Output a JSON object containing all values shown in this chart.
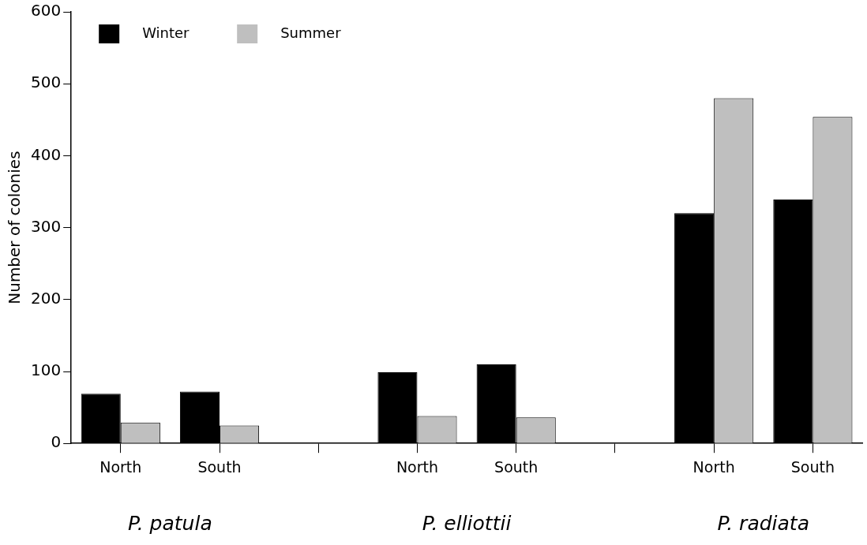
{
  "chart_data": {
    "type": "bar",
    "ylabel": "Number of colonies",
    "categories": [
      "North",
      "South",
      null,
      "North",
      "South",
      null,
      "North",
      "South"
    ],
    "series": [
      {
        "name": "Winter",
        "color": "#000000",
        "values": [
          69,
          72,
          null,
          99,
          110,
          null,
          320,
          339
        ]
      },
      {
        "name": "Summer",
        "color": "#bfbfbf",
        "values": [
          29,
          25,
          null,
          38,
          36,
          null,
          480,
          454
        ]
      }
    ],
    "ylim": [
      0,
      600
    ],
    "yticks": [
      0,
      100,
      200,
      300,
      400,
      500,
      600
    ],
    "grid": false,
    "legend": "top left",
    "annotations": [
      "P. patula",
      "P. elliottii",
      "P. radiata"
    ]
  }
}
